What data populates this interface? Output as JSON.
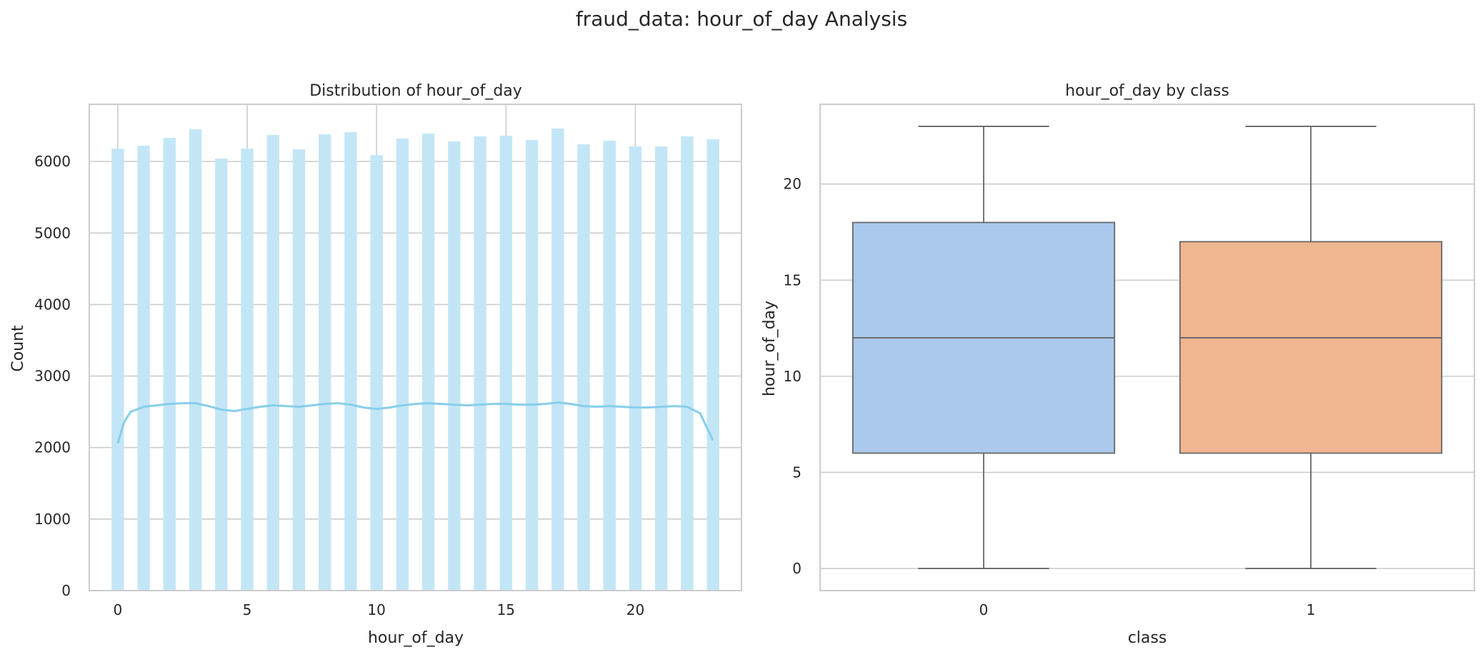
{
  "suptitle": "fraud_data: hour_of_day Analysis",
  "chart_data": [
    {
      "type": "bar",
      "subtype": "histogram_with_kde",
      "title": "Distribution of hour_of_day",
      "xlabel": "hour_of_day",
      "ylabel": "Count",
      "xlim": [
        -1.1,
        24.1
      ],
      "ylim": [
        0,
        6800
      ],
      "xticks": [
        0,
        5,
        10,
        15,
        20
      ],
      "yticks": [
        0,
        1000,
        2000,
        3000,
        4000,
        5000,
        6000
      ],
      "grid": true,
      "bar_color": "#c3e6f6",
      "line_color": "#87ceeb",
      "categories": [
        0,
        1,
        2,
        3,
        4,
        5,
        6,
        7,
        8,
        9,
        10,
        11,
        12,
        13,
        14,
        15,
        16,
        17,
        18,
        19,
        20,
        21,
        22,
        23
      ],
      "values": [
        6180,
        6220,
        6330,
        6450,
        6040,
        6180,
        6370,
        6170,
        6380,
        6410,
        6090,
        6320,
        6390,
        6280,
        6350,
        6360,
        6300,
        6460,
        6240,
        6290,
        6210,
        6210,
        6350,
        6310
      ],
      "kde": {
        "x": [
          0,
          0.25,
          0.5,
          1,
          1.5,
          2,
          2.5,
          3,
          3.5,
          4,
          4.5,
          5,
          5.5,
          6,
          6.5,
          7,
          7.5,
          8,
          8.5,
          9,
          9.5,
          10,
          10.5,
          11,
          11.5,
          12,
          12.5,
          13,
          13.5,
          14,
          14.5,
          15,
          15.5,
          16,
          16.5,
          17,
          17.5,
          18,
          18.5,
          19,
          19.5,
          20,
          20.5,
          21,
          21.5,
          22,
          22.5,
          23
        ],
        "y": [
          2060,
          2360,
          2500,
          2570,
          2590,
          2610,
          2620,
          2620,
          2580,
          2530,
          2510,
          2540,
          2570,
          2590,
          2580,
          2570,
          2590,
          2610,
          2620,
          2600,
          2560,
          2540,
          2560,
          2590,
          2610,
          2620,
          2610,
          2600,
          2590,
          2600,
          2610,
          2610,
          2600,
          2600,
          2610,
          2630,
          2610,
          2580,
          2570,
          2580,
          2570,
          2560,
          2560,
          2570,
          2580,
          2570,
          2480,
          2100
        ]
      }
    },
    {
      "type": "box",
      "title": "hour_of_day by class",
      "xlabel": "class",
      "ylabel": "hour_of_day",
      "ylim": [
        -1.15,
        24.15
      ],
      "yticks": [
        0,
        5,
        10,
        15,
        20
      ],
      "grid": true,
      "categories": [
        "0",
        "1"
      ],
      "series": [
        {
          "category": "0",
          "min": 0,
          "q1": 6,
          "median": 12,
          "q3": 18,
          "max": 23,
          "color": "#abc9ed"
        },
        {
          "category": "1",
          "min": 0,
          "q1": 6,
          "median": 12,
          "q3": 17,
          "max": 23,
          "color": "#f0b690"
        }
      ],
      "line_color": "#666666"
    }
  ]
}
